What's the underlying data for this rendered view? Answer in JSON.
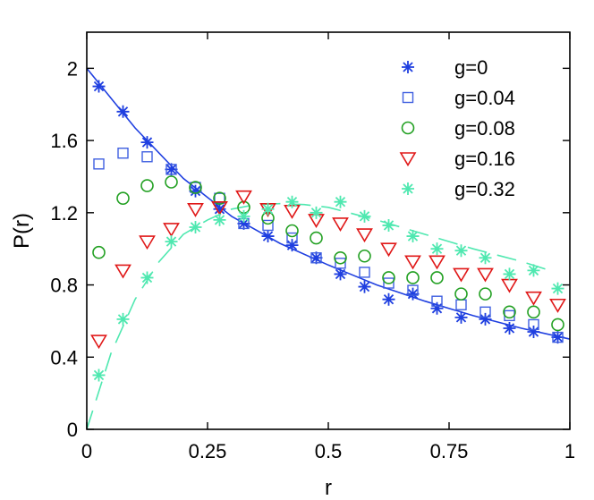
{
  "chart_data": {
    "type": "scatter",
    "title": "",
    "xlabel": "r",
    "ylabel": "P(r)",
    "xlim": [
      0,
      1
    ],
    "ylim": [
      0,
      2.2
    ],
    "xticks": [
      0,
      0.25,
      0.5,
      0.75,
      1
    ],
    "xtick_labels": [
      "0",
      "0.25",
      "0.5",
      "0.75",
      "1"
    ],
    "yticks": [
      0,
      0.4,
      0.8,
      1.2,
      1.6,
      2
    ],
    "ytick_labels": [
      "0",
      "0.4",
      "0.8",
      "1.2",
      "1.6",
      "2"
    ],
    "legend_position": "top-right",
    "x": [
      0.025,
      0.075,
      0.125,
      0.175,
      0.225,
      0.275,
      0.325,
      0.375,
      0.425,
      0.475,
      0.525,
      0.575,
      0.625,
      0.675,
      0.725,
      0.775,
      0.825,
      0.875,
      0.925,
      0.975
    ],
    "series": [
      {
        "name": "g=0",
        "marker": "asterisk",
        "color": "#1f3fe0",
        "values": [
          1.9,
          1.76,
          1.59,
          1.44,
          1.32,
          1.22,
          1.14,
          1.07,
          1.02,
          0.95,
          0.86,
          0.79,
          0.72,
          0.75,
          0.67,
          0.62,
          0.61,
          0.56,
          0.54,
          0.51
        ]
      },
      {
        "name": "g=0.04",
        "marker": "square",
        "color": "#3f5fe0",
        "values": [
          1.47,
          1.53,
          1.51,
          1.44,
          1.34,
          1.28,
          1.14,
          1.13,
          1.06,
          0.95,
          0.92,
          0.87,
          0.81,
          0.77,
          0.71,
          0.69,
          0.65,
          0.63,
          0.58,
          0.51
        ]
      },
      {
        "name": "g=0.08",
        "marker": "circle",
        "color": "#22a022",
        "values": [
          0.98,
          1.28,
          1.35,
          1.37,
          1.34,
          1.28,
          1.23,
          1.17,
          1.1,
          1.06,
          0.95,
          0.96,
          0.84,
          0.84,
          0.84,
          0.75,
          0.75,
          0.65,
          0.65,
          0.58
        ]
      },
      {
        "name": "g=0.16",
        "marker": "triangle-down",
        "color": "#e01818",
        "values": [
          0.49,
          0.88,
          1.04,
          1.11,
          1.22,
          1.23,
          1.29,
          1.22,
          1.21,
          1.16,
          1.14,
          1.08,
          1.0,
          0.93,
          0.93,
          0.86,
          0.86,
          0.8,
          0.73,
          0.69
        ]
      },
      {
        "name": "g=0.32",
        "marker": "asterisk",
        "color": "#4fe8b0",
        "values": [
          0.3,
          0.61,
          0.84,
          1.04,
          1.12,
          1.16,
          1.18,
          1.22,
          1.26,
          1.2,
          1.26,
          1.18,
          1.13,
          1.07,
          1.0,
          0.99,
          0.95,
          0.86,
          0.88,
          0.78
        ]
      }
    ],
    "curves": [
      {
        "name": "g=0 fit",
        "style": "solid",
        "color": "#1f3fe0",
        "x": [
          0,
          0.1,
          0.2,
          0.3,
          0.4,
          0.5,
          0.6,
          0.7,
          0.8,
          0.9,
          1.0
        ],
        "y": [
          2.0,
          1.67,
          1.39,
          1.18,
          1.03,
          0.91,
          0.8,
          0.71,
          0.63,
          0.56,
          0.5
        ]
      },
      {
        "name": "g=0.32 fit",
        "style": "dashed",
        "color": "#4fe8b0",
        "x": [
          0,
          0.05,
          0.1,
          0.15,
          0.2,
          0.25,
          0.3,
          0.35,
          0.4,
          0.45,
          0.5,
          0.6,
          0.7,
          0.8,
          0.9,
          0.97
        ],
        "y": [
          0.0,
          0.42,
          0.72,
          0.93,
          1.08,
          1.16,
          1.22,
          1.245,
          1.25,
          1.245,
          1.23,
          1.16,
          1.08,
          1.0,
          0.93,
          0.87
        ]
      }
    ]
  }
}
